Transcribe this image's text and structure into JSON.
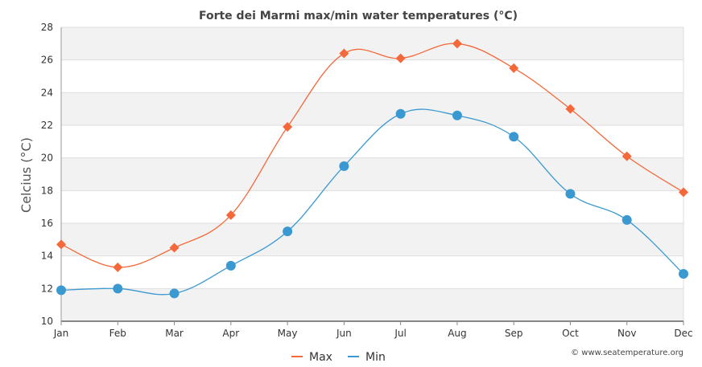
{
  "chart_data": {
    "type": "line",
    "title": "Forte dei Marmi max/min water temperatures (°C)",
    "xlabel": "",
    "ylabel": "Celcius (°C)",
    "categories": [
      "Jan",
      "Feb",
      "Mar",
      "Apr",
      "May",
      "Jun",
      "Jul",
      "Aug",
      "Sep",
      "Oct",
      "Nov",
      "Dec"
    ],
    "ylim": [
      10,
      28
    ],
    "yticks": [
      10,
      12,
      14,
      16,
      18,
      20,
      22,
      24,
      26,
      28
    ],
    "grid": "alternating horizontal bands",
    "legend_position": "bottom-center",
    "series": [
      {
        "name": "Max",
        "color": "#f4683a",
        "marker": "diamond",
        "values": [
          14.7,
          13.3,
          14.5,
          16.5,
          21.9,
          26.4,
          26.1,
          27.0,
          25.5,
          23.0,
          20.1,
          17.9
        ]
      },
      {
        "name": "Min",
        "color": "#3a99d0",
        "marker": "circle",
        "values": [
          11.9,
          12.0,
          11.7,
          13.4,
          15.5,
          19.5,
          22.7,
          22.6,
          21.3,
          17.8,
          16.2,
          12.9
        ]
      }
    ],
    "credit": "© www.seatemperature.org"
  }
}
